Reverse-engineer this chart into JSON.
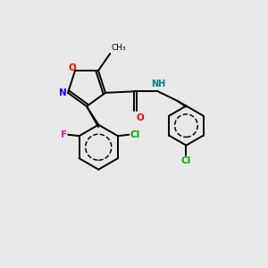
{
  "background_color": "#e8e8e8",
  "bond_color": "#000000",
  "atom_colors": {
    "O": "#ff0000",
    "N": "#0000ff",
    "NH": "#008080",
    "F": "#ff00aa",
    "Cl": "#00aa00",
    "C": "#000000"
  },
  "lw": 1.4
}
